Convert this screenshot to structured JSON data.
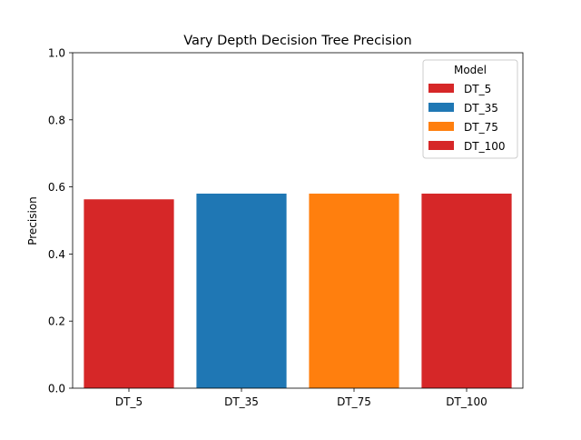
{
  "chart_data": {
    "type": "bar",
    "title": "Vary Depth Decision Tree Precision",
    "xlabel": "",
    "ylabel": "Precision",
    "ylim": [
      0,
      1.0
    ],
    "yticks": [
      "0.0",
      "0.2",
      "0.4",
      "0.6",
      "0.8",
      "1.0"
    ],
    "categories": [
      "DT_5",
      "DT_35",
      "DT_75",
      "DT_100"
    ],
    "values": [
      0.563,
      0.58,
      0.58,
      0.58
    ],
    "colors": [
      "#d62728",
      "#1f77b4",
      "#ff7f0e",
      "#d62728"
    ],
    "grid": false,
    "legend": {
      "title": "Model",
      "position": "top-right",
      "entries": [
        "DT_5",
        "DT_35",
        "DT_75",
        "DT_100"
      ]
    }
  }
}
